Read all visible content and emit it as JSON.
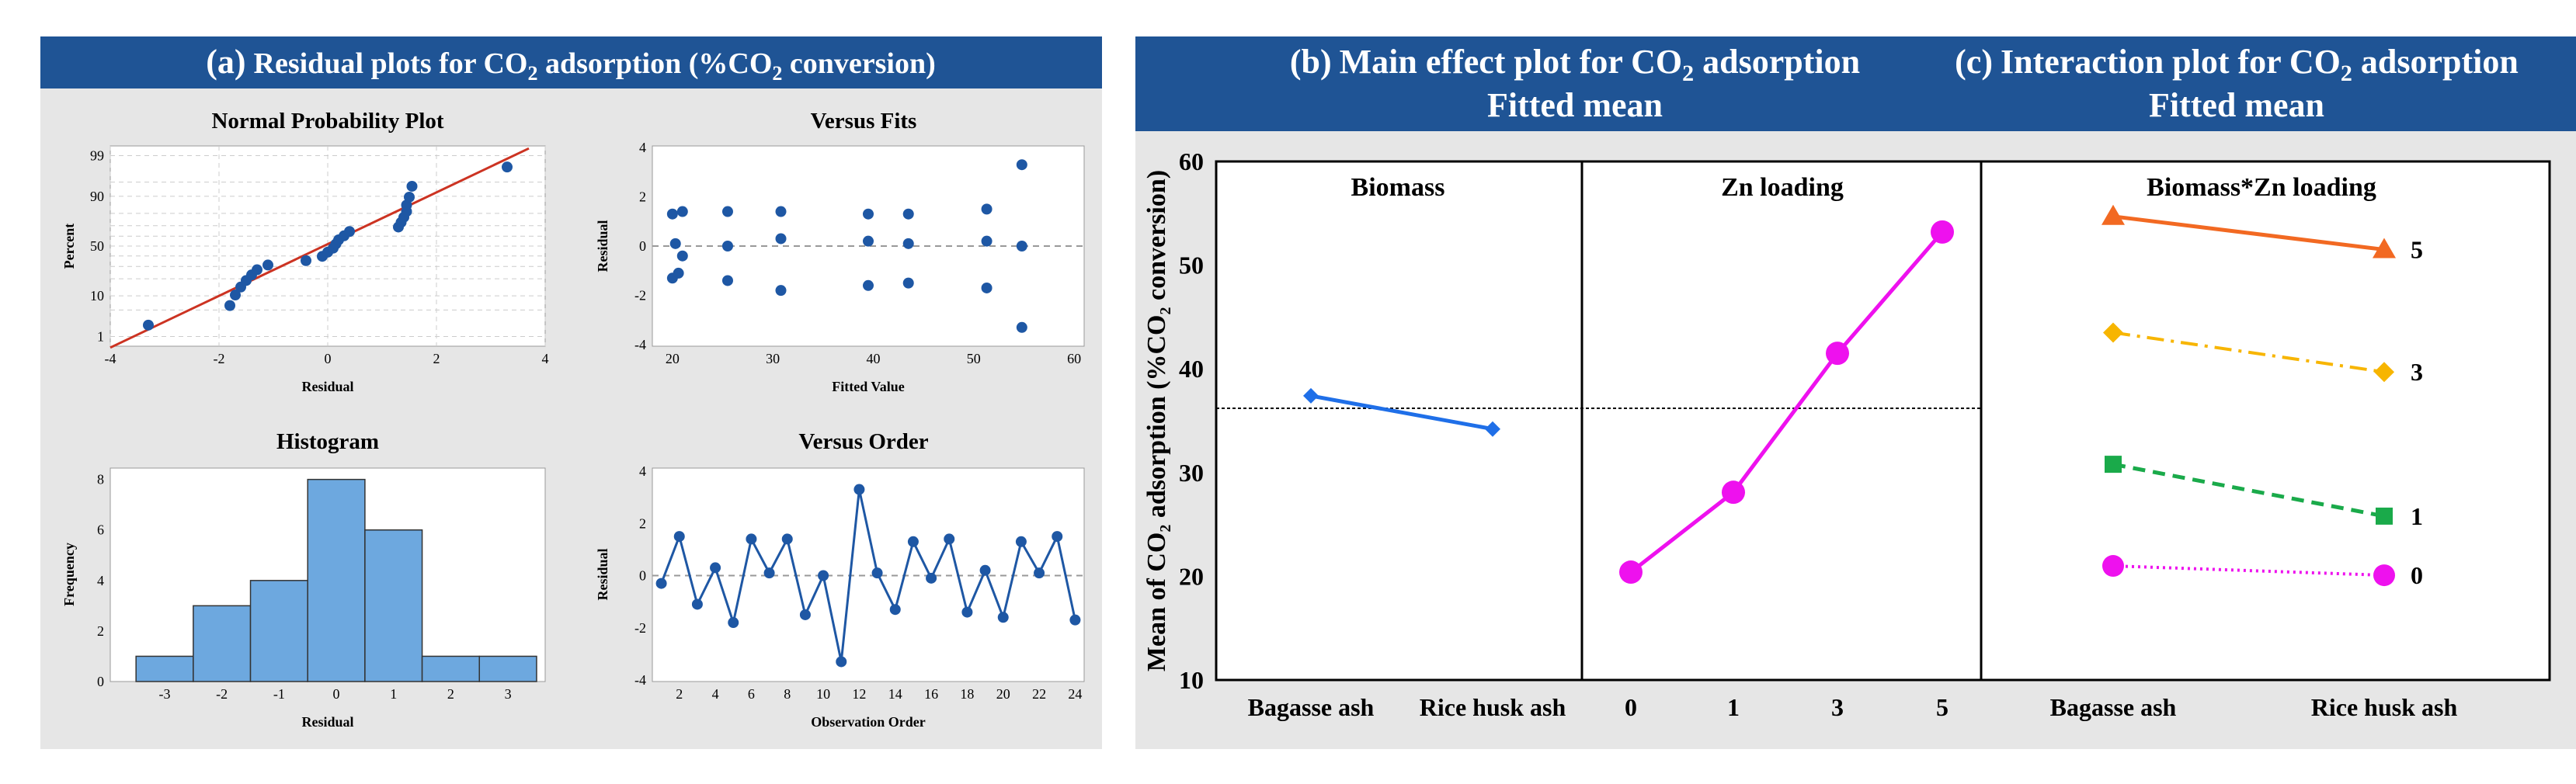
{
  "colors": {
    "header_bg": "#1f5495",
    "panel_bg": "#e6e6e6",
    "marker": "#1e57a4",
    "fit_line": "#cc3322",
    "hist_bar": "#6da8df",
    "main_biomass": "#1f6fe8",
    "main_zn": "#ee11ee",
    "int_5": "#f26922",
    "int_3": "#f7b500",
    "int_1": "#1aaa4a",
    "int_0": "#ee11ee"
  },
  "header_a": {
    "prefix": "(a)",
    "pre": "Residual plots for CO",
    "sub": "2",
    "mid": " adsorption (%CO",
    "sub2": "2",
    "post": " conversion)"
  },
  "header_b": {
    "prefix": "(b)",
    "pre": "Main effect plot for CO",
    "sub": "2",
    "post": " adsorption",
    "line2": "Fitted mean"
  },
  "header_c": {
    "prefix": "(c)",
    "pre": "Interaction plot for CO",
    "sub": "2",
    "post": " adsorption",
    "line2": "Fitted mean"
  },
  "chart_data": [
    {
      "type": "scatter",
      "title": "Normal Probability Plot",
      "xlabel": "Residual",
      "ylabel": "Percent",
      "xlim": [
        -4,
        4
      ],
      "xticks": [
        -4,
        -2,
        0,
        2,
        4
      ],
      "yscale": "probability",
      "yticks": [
        1,
        10,
        50,
        90,
        99
      ],
      "fit_line": [
        [
          -4.0,
          0.45
        ],
        [
          3.7,
          99.4
        ]
      ],
      "points": [
        [
          -3.3,
          2.1
        ],
        [
          -1.8,
          6.3
        ],
        [
          -1.7,
          10.4
        ],
        [
          -1.6,
          14.6
        ],
        [
          -1.5,
          18.8
        ],
        [
          -1.4,
          22.9
        ],
        [
          -1.3,
          27.1
        ],
        [
          -1.1,
          31.3
        ],
        [
          -0.4,
          35.4
        ],
        [
          -0.1,
          39.6
        ],
        [
          0.0,
          43.8
        ],
        [
          0.1,
          47.9
        ],
        [
          0.15,
          52.1
        ],
        [
          0.2,
          56.3
        ],
        [
          0.3,
          60.4
        ],
        [
          0.4,
          64.6
        ],
        [
          1.3,
          68.8
        ],
        [
          1.35,
          72.9
        ],
        [
          1.4,
          77.1
        ],
        [
          1.45,
          81.3
        ],
        [
          1.45,
          85.4
        ],
        [
          1.5,
          89.6
        ],
        [
          1.55,
          93.8
        ],
        [
          3.3,
          97.9
        ]
      ],
      "grid": true
    },
    {
      "type": "scatter",
      "title": "Versus Fits",
      "xlabel": "Fitted Value",
      "ylabel": "Residual",
      "xlim": [
        20,
        60
      ],
      "xticks": [
        20,
        30,
        40,
        50,
        60
      ],
      "ylim": [
        -4,
        4
      ],
      "yticks": [
        -4,
        -2,
        0,
        2,
        4
      ],
      "points": [
        [
          20.0,
          -1.3
        ],
        [
          20.0,
          1.3
        ],
        [
          20.3,
          0.1
        ],
        [
          20.6,
          -1.1
        ],
        [
          21.0,
          1.4
        ],
        [
          21.0,
          -0.4
        ],
        [
          25.5,
          1.4
        ],
        [
          25.5,
          0.0
        ],
        [
          25.5,
          -1.4
        ],
        [
          30.8,
          1.4
        ],
        [
          30.8,
          0.3
        ],
        [
          30.8,
          -1.8
        ],
        [
          39.5,
          1.3
        ],
        [
          39.5,
          0.2
        ],
        [
          39.5,
          -1.6
        ],
        [
          43.5,
          1.3
        ],
        [
          43.5,
          0.1
        ],
        [
          43.5,
          -1.5
        ],
        [
          51.3,
          1.5
        ],
        [
          51.3,
          0.2
        ],
        [
          51.3,
          -1.7
        ],
        [
          54.8,
          3.3
        ],
        [
          54.8,
          0.0
        ],
        [
          54.8,
          -3.3
        ]
      ],
      "reference_line": 0
    },
    {
      "type": "bar",
      "title": "Histogram",
      "xlabel": "Residual",
      "ylabel": "Frequency",
      "categories": [
        "-3",
        "-2",
        "-1",
        "0",
        "1",
        "2",
        "3"
      ],
      "bins": [
        -3.5,
        -2.5,
        -1.5,
        -0.5,
        0.5,
        1.5,
        2.5,
        3.5
      ],
      "values": [
        1,
        3,
        4,
        8,
        6,
        1,
        1
      ],
      "ylim": [
        0,
        8
      ],
      "yticks": [
        0,
        2,
        4,
        6,
        8
      ]
    },
    {
      "type": "line",
      "title": "Versus Order",
      "xlabel": "Observation Order",
      "ylabel": "Residual",
      "xticks": [
        2,
        4,
        6,
        8,
        10,
        12,
        14,
        16,
        18,
        20,
        22,
        24
      ],
      "ylim": [
        -4,
        4
      ],
      "yticks": [
        -4,
        -2,
        0,
        2,
        4
      ],
      "x": [
        1,
        2,
        3,
        4,
        5,
        6,
        7,
        8,
        9,
        10,
        11,
        12,
        13,
        14,
        15,
        16,
        17,
        18,
        19,
        20,
        21,
        22,
        23,
        24
      ],
      "y": [
        -0.3,
        1.5,
        -1.1,
        0.3,
        -1.8,
        1.4,
        0.1,
        1.4,
        -1.5,
        0.0,
        -3.3,
        3.3,
        0.1,
        -1.3,
        1.3,
        -0.1,
        1.4,
        -1.4,
        0.2,
        -1.6,
        1.3,
        0.1,
        1.5,
        -1.7
      ],
      "reference_line": 0
    },
    {
      "type": "line",
      "title": "Main effect plot for CO2 adsorption",
      "ylabel_parts": {
        "pre": "Mean of CO",
        "sub": "2",
        "mid": " adsorption (%CO",
        "sub2": "2",
        "post": " conversion)"
      },
      "ylim": [
        10,
        60
      ],
      "yticks": [
        10,
        20,
        30,
        40,
        50,
        60
      ],
      "mean_line": 36.2,
      "panels": [
        {
          "label": "Biomass",
          "categories": [
            "Bagasse ash",
            "Rice husk ash"
          ],
          "values": [
            37.4,
            34.2
          ]
        },
        {
          "label": "Zn loading",
          "categories": [
            "0",
            "1",
            "3",
            "5"
          ],
          "values": [
            20.4,
            28.1,
            41.5,
            53.2
          ]
        }
      ]
    },
    {
      "type": "line",
      "title": "Biomass*Zn loading",
      "categories": [
        "Bagasse ash",
        "Rice husk ash"
      ],
      "ylim": [
        10,
        60
      ],
      "series": [
        {
          "name": "5",
          "values": [
            54.7,
            51.5
          ]
        },
        {
          "name": "3",
          "values": [
            43.5,
            39.7
          ]
        },
        {
          "name": "1",
          "values": [
            30.8,
            25.8
          ]
        },
        {
          "name": "0",
          "values": [
            21.0,
            20.1
          ]
        }
      ]
    }
  ]
}
